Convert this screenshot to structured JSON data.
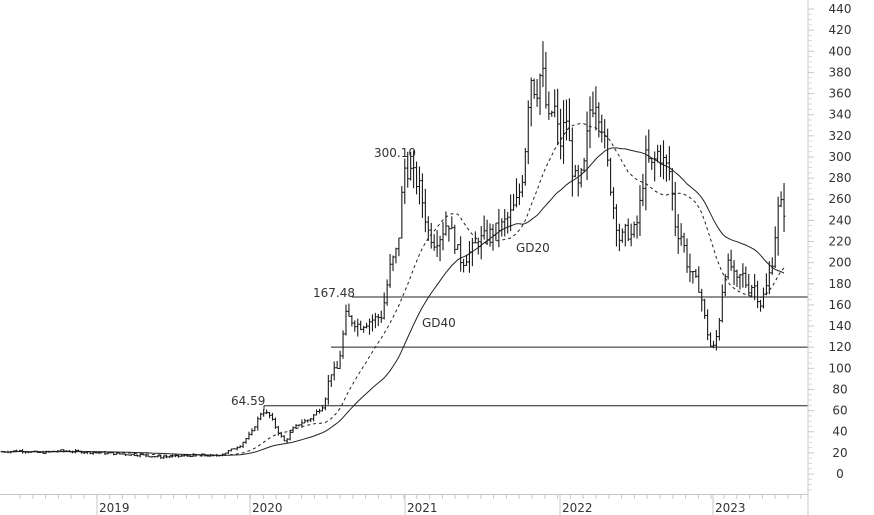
{
  "chart_data": {
    "type": "bar",
    "subtype": "ohlc-weekly",
    "title": "",
    "xlabel": "",
    "ylabel": "",
    "ylim": [
      -15,
      445
    ],
    "y_ticks": [
      0,
      20,
      40,
      60,
      80,
      100,
      120,
      140,
      160,
      180,
      200,
      220,
      240,
      260,
      280,
      300,
      320,
      340,
      360,
      380,
      400,
      420,
      440
    ],
    "x_ticks": [
      "2019",
      "2020",
      "2021",
      "2022",
      "2023"
    ],
    "grid": false,
    "legend": "none",
    "axis_position": "right",
    "horizontal_levels": [
      {
        "value": 64.59,
        "label": "64.59",
        "start": "2020-01"
      },
      {
        "value": 120,
        "label": "",
        "start": "2020-07"
      },
      {
        "value": 167.48,
        "label": "167.48",
        "start": "2020-08"
      }
    ],
    "annotations": [
      {
        "text": "300.10",
        "near": "2020-12 peak"
      },
      {
        "text": "GD20",
        "meaning": "20-period moving average (dashed)"
      },
      {
        "text": "GD40",
        "meaning": "40-period moving average (solid)"
      }
    ],
    "series": [
      {
        "name": "Price",
        "style": "ohlc-bars",
        "x": [
          "2018-Q2",
          "2018-Q3",
          "2018-Q4",
          "2019-Q1",
          "2019-Q2",
          "2019-Q3",
          "2019-Q4",
          "2020-Jan",
          "2020-Feb",
          "2020-Mar",
          "2020-Apr",
          "2020-May",
          "2020-Jun",
          "2020-Jul",
          "2020-Aug",
          "2020-Sep",
          "2020-Oct",
          "2020-Nov",
          "2020-Dec",
          "2021-Jan",
          "2021-Feb",
          "2021-Mar",
          "2021-Apr",
          "2021-May",
          "2021-Jun",
          "2021-Jul",
          "2021-Aug",
          "2021-Sep",
          "2021-Oct",
          "2021-Nov",
          "2021-Dec",
          "2022-Jan",
          "2022-Feb",
          "2022-Mar",
          "2022-Apr",
          "2022-May",
          "2022-Jun",
          "2022-Jul",
          "2022-Aug",
          "2022-Sep",
          "2022-Oct",
          "2022-Nov",
          "2022-Dec",
          "2023-Jan",
          "2023-Feb",
          "2023-Mar",
          "2023-Apr",
          "2023-May"
        ],
        "values": [
          21,
          22,
          20,
          21,
          20,
          18,
          17,
          20,
          35,
          62,
          40,
          35,
          55,
          65,
          95,
          150,
          145,
          165,
          230,
          290,
          265,
          220,
          230,
          245,
          200,
          215,
          225,
          240,
          270,
          390,
          350,
          380,
          330,
          290,
          260,
          230,
          360,
          300,
          310,
          270,
          205,
          190,
          160,
          115,
          200,
          195,
          170,
          260
        ]
      },
      {
        "name": "GD20",
        "style": "dashed-line",
        "values": [
          21,
          21,
          21,
          20,
          20,
          19,
          18,
          19,
          24,
          35,
          40,
          42,
          48,
          55,
          75,
          100,
          130,
          150,
          175,
          210,
          240,
          245,
          230,
          222,
          225,
          220,
          222,
          232,
          270,
          300,
          330,
          325,
          315,
          295,
          285,
          270,
          265,
          260,
          255,
          240,
          220,
          190,
          170,
          165,
          175,
          175,
          180,
          198
        ]
      },
      {
        "name": "GD40",
        "style": "solid-line",
        "values": [
          20,
          20,
          20,
          20,
          20,
          19,
          18,
          18,
          20,
          25,
          30,
          35,
          40,
          45,
          55,
          70,
          90,
          110,
          140,
          170,
          195,
          210,
          215,
          218,
          220,
          225,
          230,
          238,
          250,
          270,
          290,
          305,
          305,
          303,
          300,
          295,
          290,
          285,
          280,
          270,
          255,
          230,
          215,
          205,
          200,
          195,
          192,
          188
        ]
      }
    ]
  },
  "axis": {
    "y_labels": [
      "440",
      "420",
      "400",
      "380",
      "360",
      "340",
      "320",
      "300",
      "280",
      "260",
      "240",
      "220",
      "200",
      "180",
      "160",
      "140",
      "120",
      "100",
      "80",
      "60",
      "40",
      "20",
      "0"
    ],
    "x_labels": [
      "2019",
      "2020",
      "2021",
      "2022",
      "2023"
    ]
  },
  "labels": {
    "level_64": "64.59",
    "level_167": "167.48",
    "peak": "300.10",
    "ma_short": "GD20",
    "ma_long": "GD40"
  },
  "colors": {
    "bars": "#1a1a1a",
    "axis": "#c8c8c8",
    "text": "#333333",
    "background": "#ffffff"
  }
}
